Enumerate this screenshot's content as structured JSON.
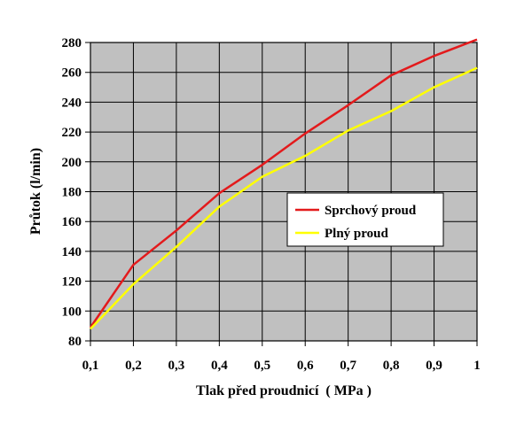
{
  "chart_data": {
    "type": "line",
    "xlabel": "Tlak před proudnicí  ( MPa )",
    "ylabel": "Průtok (l/min)",
    "x": [
      0.1,
      0.2,
      0.3,
      0.4,
      0.5,
      0.6,
      0.7,
      0.8,
      0.9,
      1.0
    ],
    "x_tick_labels": [
      "0,1",
      "0,2",
      "0,3",
      "0,4",
      "0,5",
      "0,6",
      "0,7",
      "0,8",
      "0,9",
      "1"
    ],
    "y_tick_labels": [
      "80",
      "100",
      "120",
      "140",
      "160",
      "180",
      "200",
      "220",
      "240",
      "260",
      "280"
    ],
    "xlim": [
      0.1,
      1.0
    ],
    "ylim": [
      80,
      280
    ],
    "y_step": 20,
    "grid": true,
    "plot_background": "#c0c0c0",
    "legend_position": "right-middle",
    "series": [
      {
        "name": "Sprchový proud",
        "color": "#e31a1c",
        "values": [
          89,
          131,
          154,
          179,
          198,
          219,
          238,
          258,
          271,
          282
        ]
      },
      {
        "name": "Plný proud",
        "color": "#ffff00",
        "values": [
          88,
          118,
          143,
          170,
          190,
          204,
          221,
          234,
          250,
          263
        ]
      }
    ]
  }
}
